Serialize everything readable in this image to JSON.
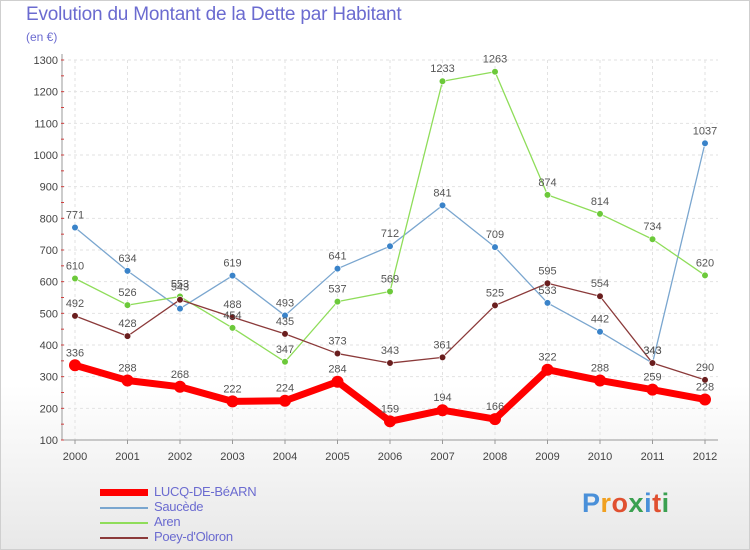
{
  "header": {
    "title": "Evolution du Montant de la Dette par Habitant",
    "subtitle": "(en €)"
  },
  "logo": {
    "text": "Proxiti",
    "colors": [
      "#4a90d9",
      "#f0a020",
      "#e05030",
      "#3aa050",
      "#4a90d9",
      "#e05030",
      "#3aa050"
    ]
  },
  "chart_data": {
    "type": "line",
    "title": "Evolution du Montant de la Dette par Habitant",
    "ylabel": "(en €)",
    "xlabel": "",
    "categories": [
      "2000",
      "2001",
      "2002",
      "2003",
      "2004",
      "2005",
      "2006",
      "2007",
      "2008",
      "2009",
      "2010",
      "2011",
      "2012"
    ],
    "ylim": [
      100,
      1300
    ],
    "yticks": [
      "100",
      "200",
      "300",
      "400",
      "500",
      "600",
      "700",
      "800",
      "900",
      "1000",
      "1100",
      "1200",
      "1300"
    ],
    "grid": true,
    "legend_position": "bottom-left",
    "series": [
      {
        "name": "LUCQ-DE-BéARN",
        "color": "#ff0000",
        "marker": "#ff0000",
        "thick": true,
        "values": [
          336,
          288,
          268,
          222,
          224,
          284,
          159,
          194,
          166,
          322,
          288,
          259,
          228
        ]
      },
      {
        "name": "Saucède",
        "color": "#7aa6cf",
        "marker": "#3a83c9",
        "thick": false,
        "values": [
          771,
          634,
          515,
          619,
          493,
          641,
          712,
          841,
          709,
          533,
          442,
          343,
          1037
        ]
      },
      {
        "name": "Aren",
        "color": "#8fdd5a",
        "marker": "#6cc93a",
        "thick": false,
        "values": [
          610,
          526,
          553,
          454,
          347,
          537,
          569,
          1233,
          1263,
          874,
          814,
          734,
          620
        ]
      },
      {
        "name": "Poey-d'Oloron",
        "color": "#8b3a3a",
        "marker": "#6a1e1e",
        "thick": false,
        "values": [
          492,
          428,
          543,
          488,
          435,
          373,
          343,
          361,
          525,
          595,
          554,
          343,
          290
        ]
      }
    ],
    "data_labels": [
      {
        "series": 0,
        "index": 0,
        "text": "336"
      },
      {
        "series": 0,
        "index": 1,
        "text": "288"
      },
      {
        "series": 0,
        "index": 2,
        "text": "268"
      },
      {
        "series": 0,
        "index": 3,
        "text": "222"
      },
      {
        "series": 0,
        "index": 4,
        "text": "224"
      },
      {
        "series": 0,
        "index": 5,
        "text": "284"
      },
      {
        "series": 0,
        "index": 6,
        "text": "159"
      },
      {
        "series": 0,
        "index": 7,
        "text": "194"
      },
      {
        "series": 0,
        "index": 8,
        "text": "166"
      },
      {
        "series": 0,
        "index": 9,
        "text": "322"
      },
      {
        "series": 0,
        "index": 10,
        "text": "288"
      },
      {
        "series": 0,
        "index": 11,
        "text": "259"
      },
      {
        "series": 0,
        "index": 12,
        "text": "228"
      },
      {
        "series": 1,
        "index": 0,
        "text": "771"
      },
      {
        "series": 1,
        "index": 1,
        "text": "634"
      },
      {
        "series": 1,
        "index": 3,
        "text": "619"
      },
      {
        "series": 1,
        "index": 4,
        "text": "493"
      },
      {
        "series": 1,
        "index": 5,
        "text": "641"
      },
      {
        "series": 1,
        "index": 6,
        "text": "712"
      },
      {
        "series": 1,
        "index": 7,
        "text": "841"
      },
      {
        "series": 1,
        "index": 8,
        "text": "709"
      },
      {
        "series": 1,
        "index": 9,
        "text": "533"
      },
      {
        "series": 1,
        "index": 10,
        "text": "442"
      },
      {
        "series": 1,
        "index": 11,
        "text": "343"
      },
      {
        "series": 1,
        "index": 12,
        "text": "1037"
      },
      {
        "series": 2,
        "index": 0,
        "text": "610"
      },
      {
        "series": 2,
        "index": 1,
        "text": "526"
      },
      {
        "series": 2,
        "index": 2,
        "text": "553"
      },
      {
        "series": 2,
        "index": 3,
        "text": "454"
      },
      {
        "series": 2,
        "index": 4,
        "text": "347"
      },
      {
        "series": 2,
        "index": 5,
        "text": "537"
      },
      {
        "series": 2,
        "index": 6,
        "text": "569"
      },
      {
        "series": 2,
        "index": 7,
        "text": "1233"
      },
      {
        "series": 2,
        "index": 8,
        "text": "1263"
      },
      {
        "series": 2,
        "index": 9,
        "text": "874"
      },
      {
        "series": 2,
        "index": 10,
        "text": "814"
      },
      {
        "series": 2,
        "index": 11,
        "text": "734"
      },
      {
        "series": 2,
        "index": 12,
        "text": "620"
      },
      {
        "series": 3,
        "index": 0,
        "text": "492"
      },
      {
        "series": 3,
        "index": 1,
        "text": "428"
      },
      {
        "series": 3,
        "index": 2,
        "text": "543"
      },
      {
        "series": 3,
        "index": 3,
        "text": "488"
      },
      {
        "series": 3,
        "index": 4,
        "text": "435"
      },
      {
        "series": 3,
        "index": 5,
        "text": "373"
      },
      {
        "series": 3,
        "index": 6,
        "text": "343"
      },
      {
        "series": 3,
        "index": 7,
        "text": "361"
      },
      {
        "series": 3,
        "index": 8,
        "text": "525"
      },
      {
        "series": 3,
        "index": 9,
        "text": "595"
      },
      {
        "series": 3,
        "index": 10,
        "text": "554"
      },
      {
        "series": 3,
        "index": 11,
        "text": "343"
      },
      {
        "series": 3,
        "index": 12,
        "text": "290"
      }
    ]
  }
}
